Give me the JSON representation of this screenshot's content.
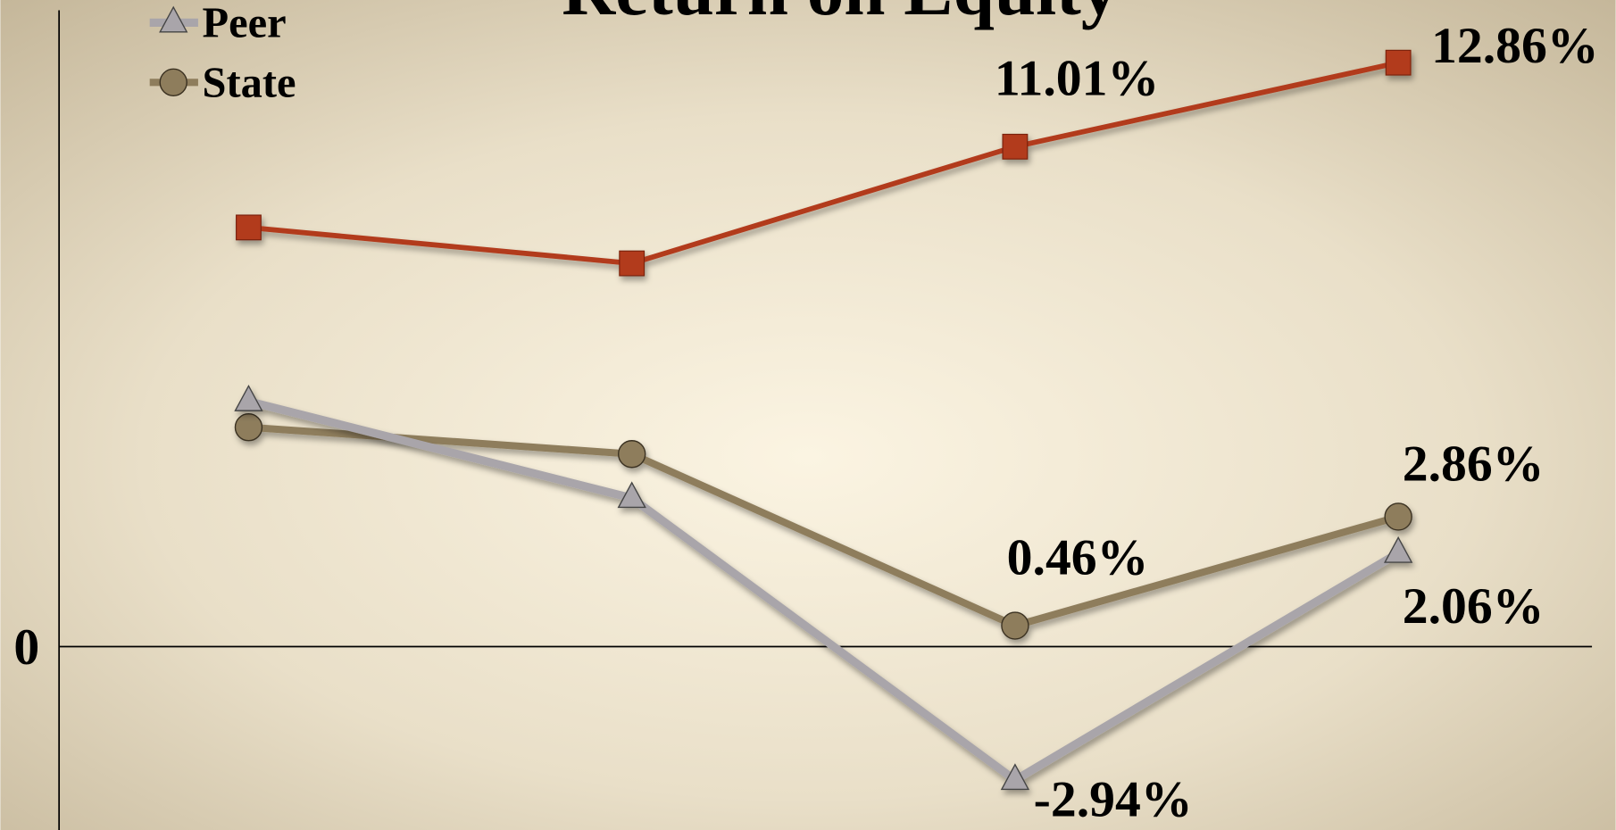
{
  "chart_data": {
    "type": "line",
    "title": "Return on Equity",
    "categories": [
      null,
      null,
      null,
      null
    ],
    "series": [
      {
        "color": "#b23a1c",
        "marker": "square",
        "values": [
          9.23,
          8.44,
          11.01,
          12.86
        ],
        "value_labels": [
          null,
          null,
          "11.01%",
          "12.86%"
        ]
      },
      {
        "name": "Peer",
        "color": "#a9a5aa",
        "marker": "triangle",
        "values": [
          5.4,
          3.27,
          -2.94,
          2.06
        ],
        "value_labels": [
          null,
          null,
          "-2.94%",
          "2.06%"
        ]
      },
      {
        "name": "State",
        "color": "#8e7d5c",
        "marker": "circle",
        "values": [
          4.83,
          4.24,
          0.46,
          2.86
        ],
        "value_labels": [
          null,
          null,
          "0.46%",
          "2.86%"
        ]
      }
    ],
    "ylim": [
      -4.04,
      14.24
    ],
    "yticks": [
      0
    ],
    "grid": false,
    "legend": "top-left"
  }
}
